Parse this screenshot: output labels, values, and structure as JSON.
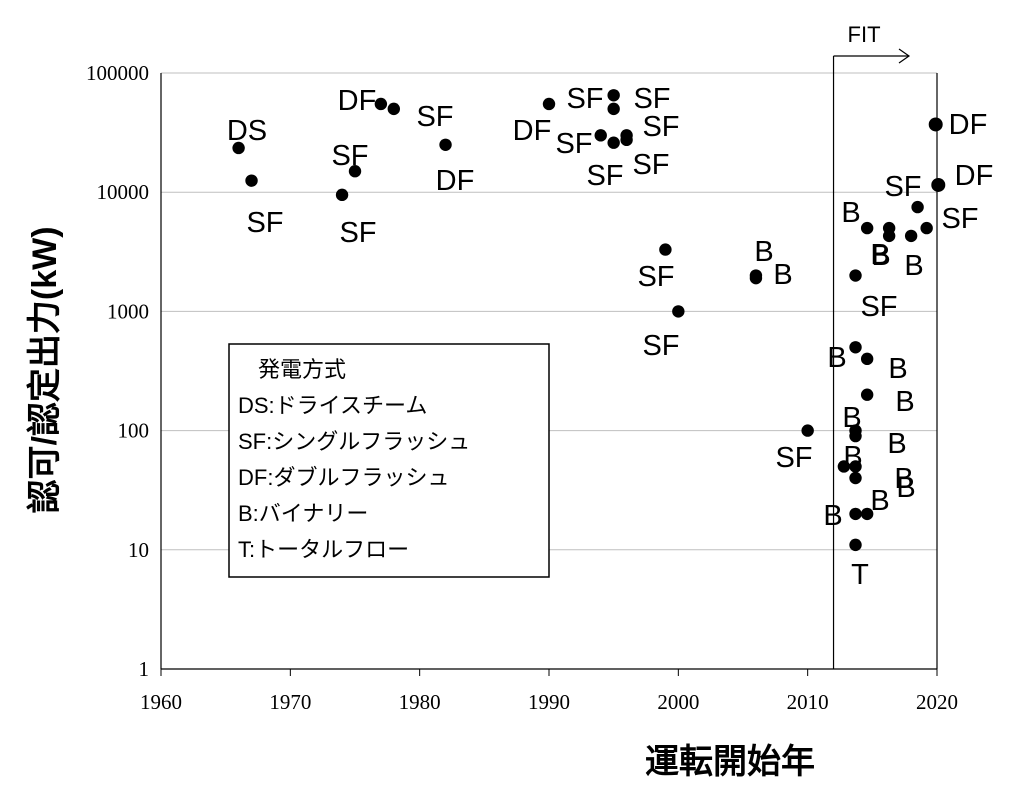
{
  "chart_data": {
    "type": "scatter",
    "xlabel": "運転開始年",
    "ylabel": "認可/認定出力(kW)",
    "xlim": [
      1960,
      2020
    ],
    "ylim": [
      1,
      100000
    ],
    "yscale": "log",
    "x_ticks": [
      "1960",
      "1970",
      "1980",
      "1990",
      "2000",
      "2010",
      "2020"
    ],
    "y_ticks": [
      "1",
      "10",
      "100",
      "1000",
      "10000",
      "100000"
    ],
    "grid": "horizontal",
    "legend": {
      "title": "発電方式",
      "entries": [
        "DS:ドライスチーム",
        "SF:シングルフラッシュ",
        "DF:ダブルフラッシュ",
        "B:バイナリー",
        "T:トータルフロー"
      ],
      "placement": "center-left"
    },
    "annotation": {
      "text": "FIT",
      "x_start": 2012,
      "x_end": 2020
    },
    "points": [
      {
        "x": 1966,
        "y": 23500,
        "label": "DS"
      },
      {
        "x": 1967,
        "y": 12500,
        "label": "SF"
      },
      {
        "x": 1974,
        "y": 9500,
        "label": "SF"
      },
      {
        "x": 1975,
        "y": 15000,
        "label": "SF"
      },
      {
        "x": 1977,
        "y": 55000,
        "label": "DF"
      },
      {
        "x": 1978,
        "y": 50000,
        "label": "SF"
      },
      {
        "x": 1982,
        "y": 25000,
        "label": "DF"
      },
      {
        "x": 1990,
        "y": 55000,
        "label": "DF"
      },
      {
        "x": 1994,
        "y": 30000,
        "label": "SF"
      },
      {
        "x": 1995,
        "y": 65000,
        "label": "SF"
      },
      {
        "x": 1995,
        "y": 50000,
        "label": "SF"
      },
      {
        "x": 1995,
        "y": 26000,
        "label": "SF"
      },
      {
        "x": 1996,
        "y": 30000,
        "label": "SF"
      },
      {
        "x": 1996,
        "y": 27500,
        "label": "SF"
      },
      {
        "x": 1999,
        "y": 3300,
        "label": "SF"
      },
      {
        "x": 2000,
        "y": 1000,
        "label": "SF"
      },
      {
        "x": 2006,
        "y": 1900,
        "label": "B"
      },
      {
        "x": 2006,
        "y": 2000,
        "label": "B"
      },
      {
        "x": 2010,
        "y": 100,
        "label": "SF"
      },
      {
        "x": 2012.8,
        "y": 50,
        "label": "B"
      },
      {
        "x": 2013.7,
        "y": 2000,
        "label": "SF"
      },
      {
        "x": 2013.7,
        "y": 500,
        "label": "B"
      },
      {
        "x": 2013.7,
        "y": 100,
        "label": "B"
      },
      {
        "x": 2013.7,
        "y": 90,
        "label": "B"
      },
      {
        "x": 2013.7,
        "y": 50,
        "label": "B"
      },
      {
        "x": 2013.7,
        "y": 40,
        "label": "B"
      },
      {
        "x": 2013.7,
        "y": 20,
        "label": "B"
      },
      {
        "x": 2013.7,
        "y": 11,
        "label": "T"
      },
      {
        "x": 2014.6,
        "y": 5000,
        "label": "B"
      },
      {
        "x": 2014.6,
        "y": 400,
        "label": "B"
      },
      {
        "x": 2014.6,
        "y": 200,
        "label": "B"
      },
      {
        "x": 2014.6,
        "y": 20,
        "label": "B"
      },
      {
        "x": 2016.3,
        "y": 5000,
        "label": "B"
      },
      {
        "x": 2016.3,
        "y": 4300,
        "label": "B"
      },
      {
        "x": 2018,
        "y": 4300,
        "label": "B"
      },
      {
        "x": 2018.5,
        "y": 7500,
        "label": "SF"
      },
      {
        "x": 2019.2,
        "y": 5000,
        "label": "SF"
      },
      {
        "x": 2019.9,
        "y": 37000,
        "label": "DF"
      },
      {
        "x": 2020.1,
        "y": 11500,
        "label": "DF"
      }
    ]
  }
}
